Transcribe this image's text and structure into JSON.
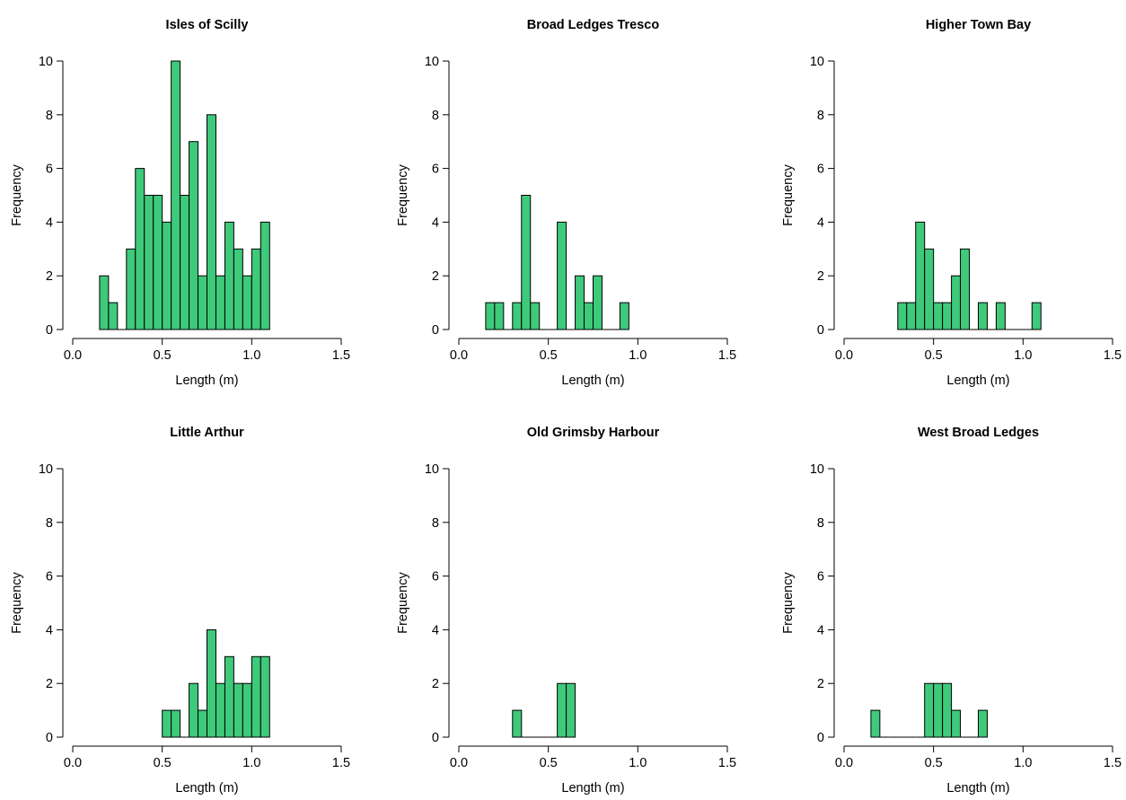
{
  "chart_data": [
    {
      "type": "bar",
      "title": "Isles of Scilly",
      "xlabel": "Length (m)",
      "ylabel": "Frequency",
      "xlim": [
        0,
        1.5
      ],
      "ylim": [
        0,
        10
      ],
      "xticks": [
        "0.0",
        "0.5",
        "1.0",
        "1.5"
      ],
      "yticks": [
        "0",
        "2",
        "4",
        "6",
        "8",
        "10"
      ],
      "bin_width": 0.05,
      "bin_starts": [
        0.15,
        0.2,
        0.25,
        0.3,
        0.35,
        0.4,
        0.45,
        0.5,
        0.55,
        0.6,
        0.65,
        0.7,
        0.75,
        0.8,
        0.85,
        0.9,
        0.95,
        1.0,
        1.05
      ],
      "values": [
        2,
        1,
        0,
        3,
        6,
        5,
        5,
        4,
        10,
        5,
        7,
        2,
        8,
        2,
        4,
        3,
        2,
        3,
        4
      ]
    },
    {
      "type": "bar",
      "title": "Broad Ledges Tresco",
      "xlabel": "Length (m)",
      "ylabel": "Frequency",
      "xlim": [
        0,
        1.5
      ],
      "ylim": [
        0,
        10
      ],
      "xticks": [
        "0.0",
        "0.5",
        "1.0",
        "1.5"
      ],
      "yticks": [
        "0",
        "2",
        "4",
        "6",
        "8",
        "10"
      ],
      "bin_width": 0.05,
      "bin_starts": [
        0.15,
        0.2,
        0.25,
        0.3,
        0.35,
        0.4,
        0.45,
        0.5,
        0.55,
        0.6,
        0.65,
        0.7,
        0.75,
        0.8,
        0.85,
        0.9
      ],
      "values": [
        1,
        1,
        0,
        1,
        5,
        1,
        0,
        0,
        4,
        0,
        2,
        1,
        2,
        0,
        0,
        1
      ]
    },
    {
      "type": "bar",
      "title": "Higher Town Bay",
      "xlabel": "Length (m)",
      "ylabel": "Frequency",
      "xlim": [
        0,
        1.5
      ],
      "ylim": [
        0,
        10
      ],
      "xticks": [
        "0.0",
        "0.5",
        "1.0",
        "1.5"
      ],
      "yticks": [
        "0",
        "2",
        "4",
        "6",
        "8",
        "10"
      ],
      "bin_width": 0.05,
      "bin_starts": [
        0.3,
        0.35,
        0.4,
        0.45,
        0.5,
        0.55,
        0.6,
        0.65,
        0.7,
        0.75,
        0.8,
        0.85,
        0.9,
        0.95,
        1.0,
        1.05
      ],
      "values": [
        1,
        1,
        4,
        3,
        1,
        1,
        2,
        3,
        0,
        1,
        0,
        1,
        0,
        0,
        0,
        1
      ]
    },
    {
      "type": "bar",
      "title": "Little Arthur",
      "xlabel": "Length (m)",
      "ylabel": "Frequency",
      "xlim": [
        0,
        1.5
      ],
      "ylim": [
        0,
        10
      ],
      "xticks": [
        "0.0",
        "0.5",
        "1.0",
        "1.5"
      ],
      "yticks": [
        "0",
        "2",
        "4",
        "6",
        "8",
        "10"
      ],
      "bin_width": 0.05,
      "bin_starts": [
        0.5,
        0.55,
        0.6,
        0.65,
        0.7,
        0.75,
        0.8,
        0.85,
        0.9,
        0.95,
        1.0,
        1.05
      ],
      "values": [
        1,
        1,
        0,
        2,
        1,
        4,
        2,
        3,
        2,
        2,
        3,
        3
      ]
    },
    {
      "type": "bar",
      "title": "Old Grimsby Harbour",
      "xlabel": "Length (m)",
      "ylabel": "Frequency",
      "xlim": [
        0,
        1.5
      ],
      "ylim": [
        0,
        10
      ],
      "xticks": [
        "0.0",
        "0.5",
        "1.0",
        "1.5"
      ],
      "yticks": [
        "0",
        "2",
        "4",
        "6",
        "8",
        "10"
      ],
      "bin_width": 0.05,
      "bin_starts": [
        0.3,
        0.35,
        0.4,
        0.45,
        0.5,
        0.55,
        0.6
      ],
      "values": [
        1,
        0,
        0,
        0,
        0,
        2,
        2
      ]
    },
    {
      "type": "bar",
      "title": "West Broad Ledges",
      "xlabel": "Length (m)",
      "ylabel": "Frequency",
      "xlim": [
        0,
        1.5
      ],
      "ylim": [
        0,
        10
      ],
      "xticks": [
        "0.0",
        "0.5",
        "1.0",
        "1.5"
      ],
      "yticks": [
        "0",
        "2",
        "4",
        "6",
        "8",
        "10"
      ],
      "bin_width": 0.05,
      "bin_starts": [
        0.15,
        0.2,
        0.25,
        0.3,
        0.35,
        0.4,
        0.45,
        0.5,
        0.55,
        0.6,
        0.65,
        0.7,
        0.75
      ],
      "values": [
        1,
        0,
        0,
        0,
        0,
        0,
        2,
        2,
        2,
        1,
        0,
        0,
        1
      ]
    }
  ],
  "colors": {
    "bar_fill": "#3ec97b",
    "bar_stroke": "#000000",
    "axis": "#000000"
  }
}
